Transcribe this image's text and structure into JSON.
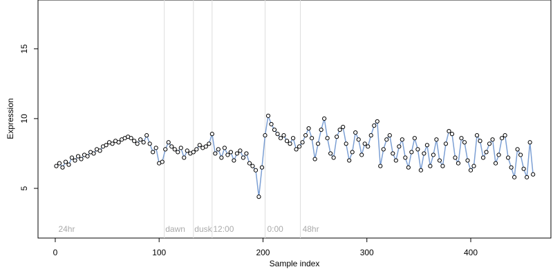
{
  "chart_data": {
    "type": "scatter",
    "x_label": "Sample index",
    "y_label": "Expression",
    "xlim": [
      -16.6,
      477.2
    ],
    "ylim": [
      1.44,
      18.5
    ],
    "xticks": [
      0,
      100,
      200,
      300,
      400
    ],
    "yticks": [
      5,
      10,
      15
    ],
    "vlines": [
      105,
      133,
      151,
      202,
      236
    ],
    "annotations": [
      {
        "x": 3,
        "label": "24hr"
      },
      {
        "x": 106,
        "label": "dawn"
      },
      {
        "x": 134,
        "label": "dusk"
      },
      {
        "x": 152,
        "label": "12:00"
      },
      {
        "x": 204,
        "label": "0:00"
      },
      {
        "x": 238,
        "label": "48hr"
      }
    ],
    "line_color": "#7b9fd4",
    "point_color": "#ffffff",
    "x": [
      1,
      4,
      7,
      10,
      13,
      16,
      19,
      22,
      25,
      28,
      31,
      34,
      37,
      40,
      43,
      46,
      49,
      52,
      55,
      58,
      61,
      64,
      67,
      70,
      73,
      76,
      79,
      82,
      85,
      88,
      91,
      94,
      97,
      100,
      103,
      106,
      109,
      112,
      115,
      118,
      121,
      124,
      127,
      130,
      133,
      136,
      139,
      142,
      145,
      148,
      151,
      154,
      157,
      160,
      163,
      166,
      169,
      172,
      175,
      178,
      181,
      184,
      187,
      190,
      193,
      196,
      199,
      202,
      205,
      208,
      211,
      214,
      217,
      220,
      223,
      226,
      229,
      232,
      235,
      238,
      241,
      244,
      247,
      250,
      253,
      256,
      259,
      262,
      265,
      268,
      271,
      274,
      277,
      280,
      283,
      286,
      289,
      292,
      295,
      298,
      301,
      304,
      307,
      310,
      313,
      316,
      319,
      322,
      325,
      328,
      331,
      334,
      337,
      340,
      343,
      346,
      349,
      352,
      355,
      358,
      361,
      364,
      367,
      370,
      373,
      376,
      379,
      382,
      385,
      388,
      391,
      394,
      397,
      400,
      403,
      406,
      409,
      412,
      415,
      418,
      421,
      424,
      427,
      430,
      433,
      436,
      439,
      442,
      445,
      448,
      451,
      454,
      457,
      460
    ],
    "values": [
      6.6,
      6.8,
      6.5,
      6.9,
      6.7,
      7.2,
      7.0,
      7.3,
      7.1,
      7.4,
      7.3,
      7.6,
      7.5,
      7.8,
      7.7,
      8.0,
      8.1,
      8.3,
      8.2,
      8.4,
      8.3,
      8.5,
      8.6,
      8.7,
      8.6,
      8.4,
      8.2,
      8.5,
      8.3,
      8.8,
      8.2,
      7.6,
      7.9,
      6.8,
      6.9,
      7.8,
      8.3,
      8.0,
      7.8,
      7.6,
      7.9,
      7.2,
      7.7,
      7.5,
      7.6,
      7.8,
      8.1,
      7.9,
      8.0,
      8.2,
      8.9,
      7.5,
      7.8,
      7.2,
      7.9,
      7.4,
      7.6,
      7.0,
      7.5,
      7.7,
      7.2,
      7.5,
      6.8,
      6.6,
      6.3,
      4.4,
      6.5,
      8.8,
      10.2,
      9.6,
      9.2,
      8.9,
      8.6,
      8.8,
      8.4,
      8.2,
      8.6,
      7.8,
      8.0,
      8.3,
      8.8,
      9.3,
      8.6,
      7.1,
      8.2,
      9.2,
      10.0,
      8.6,
      7.5,
      7.2,
      8.7,
      9.2,
      9.4,
      8.2,
      7.0,
      7.6,
      9.0,
      8.5,
      7.4,
      8.2,
      8.0,
      8.8,
      9.5,
      9.8,
      6.6,
      7.8,
      8.5,
      8.8,
      7.5,
      7.0,
      8.0,
      8.5,
      7.2,
      6.5,
      7.6,
      8.6,
      7.8,
      6.3,
      7.5,
      8.1,
      6.6,
      7.4,
      8.5,
      7.0,
      6.6,
      8.2,
      9.1,
      8.9,
      7.2,
      6.8,
      8.6,
      8.3,
      7.0,
      6.3,
      6.6,
      8.8,
      8.4,
      7.2,
      7.6,
      8.2,
      8.5,
      6.8,
      7.4,
      8.6,
      8.8,
      7.2,
      6.5,
      5.8,
      7.8,
      7.4,
      6.4,
      5.8,
      8.3,
      6.0
    ]
  }
}
